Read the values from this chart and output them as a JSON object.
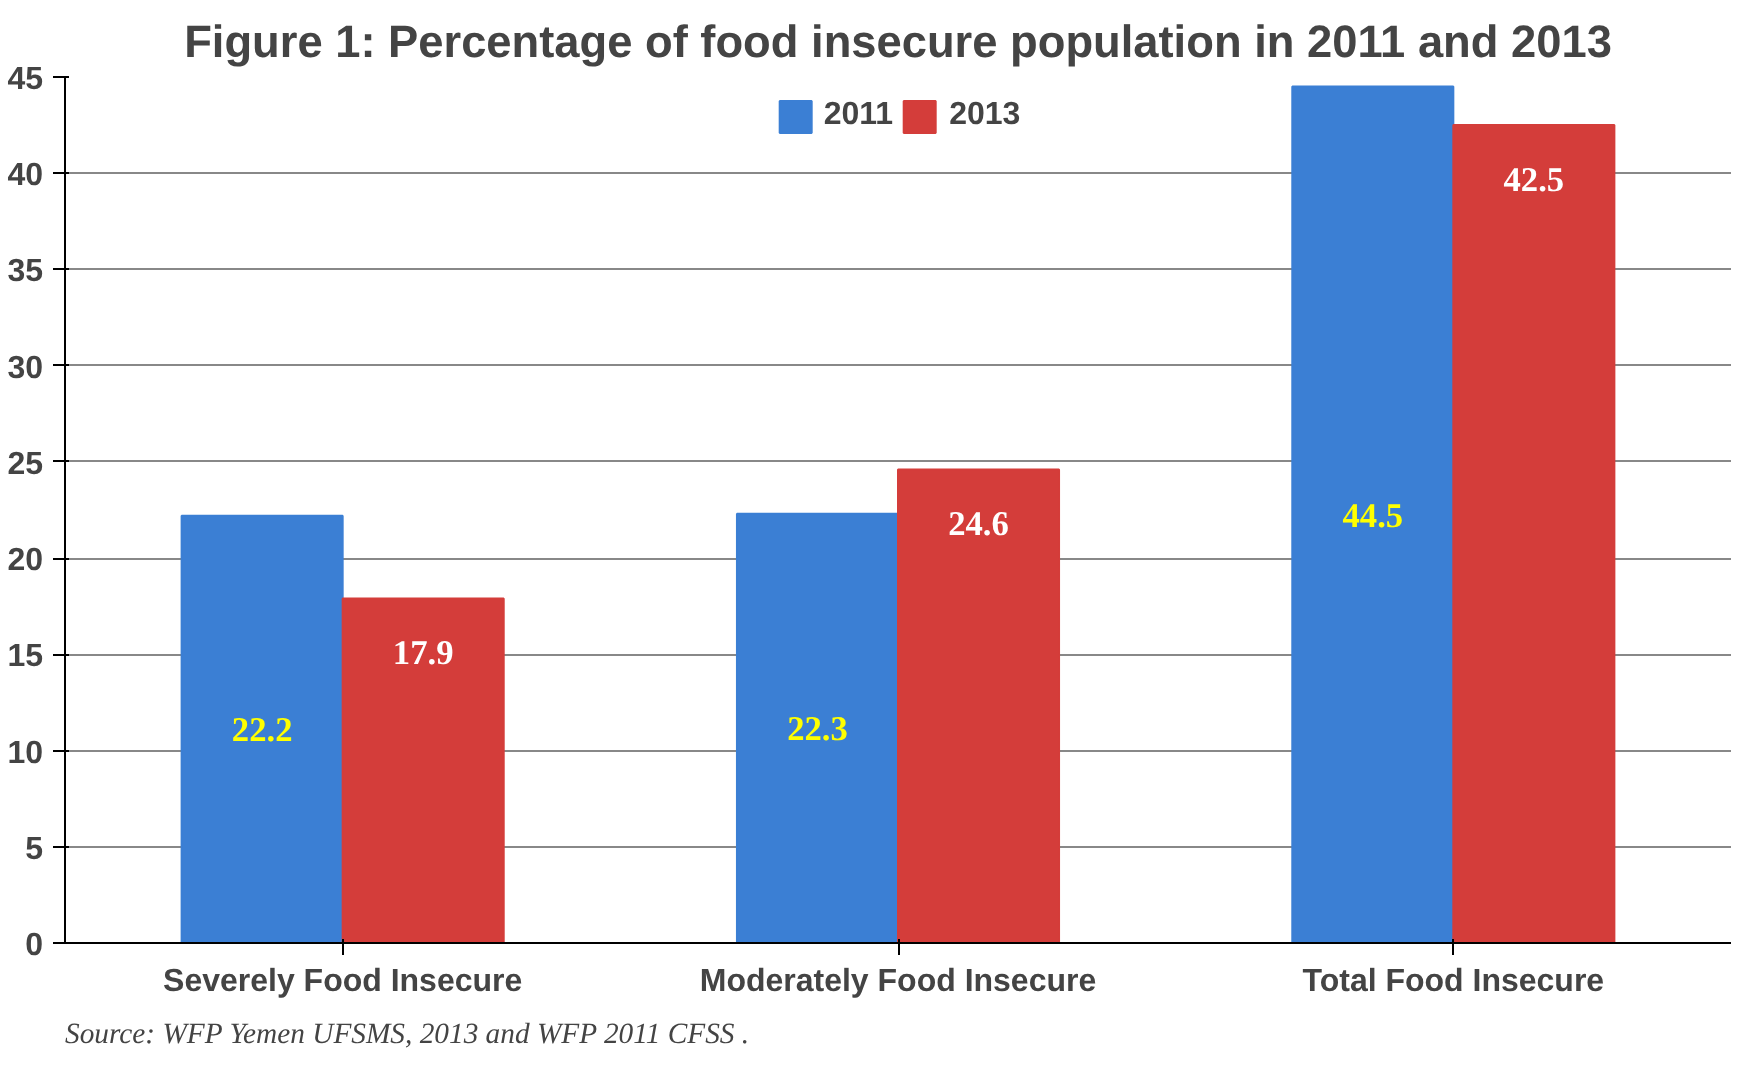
{
  "chart_data": {
    "type": "bar",
    "title": "Figure 1: Percentage of food insecure population in 2011 and 2013",
    "categories": [
      "Severely Food Insecure",
      "Moderately Food Insecure",
      "Total Food Insecure"
    ],
    "series": [
      {
        "name": "2011",
        "color": "#3b7fd4",
        "values": [
          22.2,
          22.3,
          44.5
        ]
      },
      {
        "name": "2013",
        "color": "#d43d3a",
        "values": [
          17.9,
          24.6,
          42.5
        ]
      }
    ],
    "ylim": [
      0,
      45
    ],
    "yticks": [
      0,
      5,
      10,
      15,
      20,
      25,
      30,
      35,
      40,
      45
    ],
    "grid": "y",
    "legend": "top",
    "data_labels": true,
    "annotations": [
      "Source: WFP Yemen UFSMS, 2013 and WFP 2011 CFSS ."
    ]
  }
}
